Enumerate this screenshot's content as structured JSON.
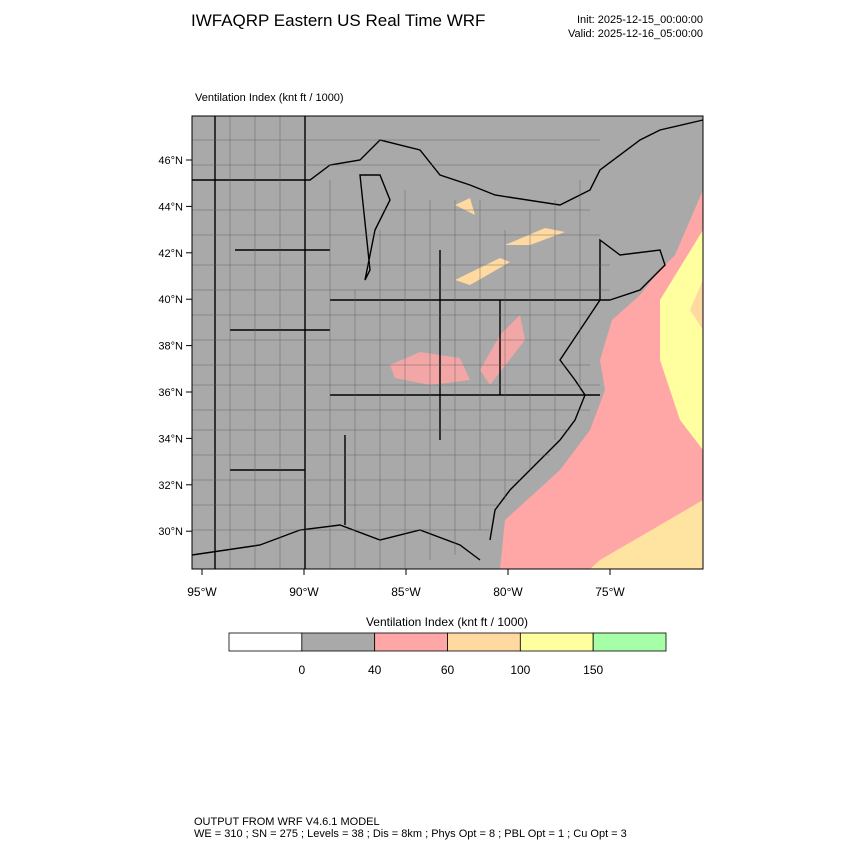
{
  "header": {
    "title": "IWFAQRP Eastern US Real Time WRF",
    "init": "Init: 2025-12-15_00:00:00",
    "valid": "Valid: 2025-12-16_05:00:00"
  },
  "map": {
    "title": "Ventilation Index   (knt ft / 1000)",
    "lat_labels": [
      "46°N",
      "44°N",
      "42°N",
      "40°N",
      "38°N",
      "36°N",
      "34°N",
      "32°N",
      "30°N"
    ],
    "lon_labels": [
      "95°W",
      "90°W",
      "85°W",
      "80°W",
      "75°W"
    ]
  },
  "colorbar": {
    "title": "Ventilation Index  (knt ft / 1000)",
    "colors": [
      "#ffffff",
      "#a9a9a9",
      "#ffa6a6",
      "#ffd9a0",
      "#ffffa0",
      "#a6ffa6"
    ],
    "labels": [
      0,
      40,
      60,
      100,
      150
    ]
  },
  "footer": {
    "line1": "OUTPUT FROM WRF V4.6.1 MODEL",
    "line2": "WE = 310 ; SN = 275 ; Levels = 38 ; Dis = 8km ; Phys Opt = 8 ; PBL Opt = 1 ; Cu Opt = 3"
  }
}
